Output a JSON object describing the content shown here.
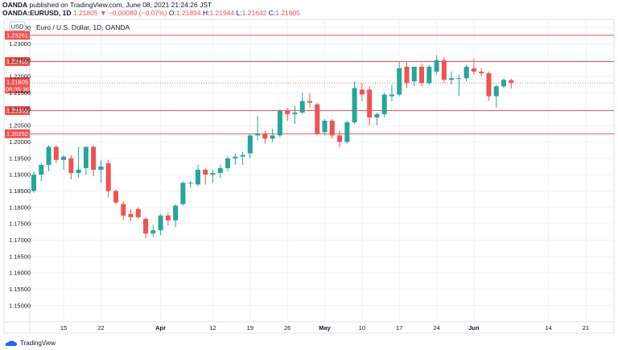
{
  "header": {
    "publisher": "OANDA",
    "published_text": "published on TradingView.com, June 08, 2021 21:24:26 JST",
    "symbol": "OANDA:EURUSD, 1D",
    "change": "1.21805 ▼ −0.00089 (−0.07%)",
    "o_label": "O:",
    "o_value": "1.21894",
    "h_label": "H:",
    "h_value": "1.21944",
    "l_label": "L:",
    "l_value": "1.21642",
    "c_label": "C:",
    "c_value": "1.21805"
  },
  "chart_data": {
    "type": "candlestick",
    "title": "Euro / U.S. Dollar, 1D, OANDA",
    "currency": "USD",
    "ylim": [
      1.145,
      1.2375
    ],
    "y_ticks": [
      "1.23500",
      "1.23000",
      "1.22500",
      "1.22000",
      "1.21500",
      "1.21000",
      "1.20500",
      "1.20000",
      "1.19500",
      "1.19000",
      "1.18500",
      "1.18000",
      "1.17500",
      "1.17000",
      "1.16500",
      "1.16000",
      "1.15500",
      "1.15000"
    ],
    "x_ticks": [
      {
        "label": "15",
        "index": 4,
        "bold": false
      },
      {
        "label": "22",
        "index": 9,
        "bold": false
      },
      {
        "label": "Apr",
        "index": 17,
        "bold": true
      },
      {
        "label": "12",
        "index": 24,
        "bold": false
      },
      {
        "label": "19",
        "index": 29,
        "bold": false
      },
      {
        "label": "26",
        "index": 34,
        "bold": false
      },
      {
        "label": "May",
        "index": 39,
        "bold": true
      },
      {
        "label": "10",
        "index": 44,
        "bold": false
      },
      {
        "label": "17",
        "index": 49,
        "bold": false
      },
      {
        "label": "24",
        "index": 54,
        "bold": false
      },
      {
        "label": "Jun",
        "index": 59,
        "bold": true
      },
      {
        "label": "14",
        "index": 69,
        "bold": false
      },
      {
        "label": "21",
        "index": 74,
        "bold": false
      }
    ],
    "horizontal_levels": [
      {
        "value": 1.23261,
        "label": "1.23261"
      },
      {
        "value": 1.22459,
        "label": "1.22459"
      },
      {
        "value": 1.20959,
        "label": "1.20959"
      },
      {
        "value": 1.20252,
        "label": "1.20252"
      }
    ],
    "last_price": {
      "value": 1.21805,
      "label": "1.21805",
      "countdown": "08:35:36"
    },
    "colors": {
      "up": "#26a69a",
      "down": "#ef5350",
      "level": "#ef5350",
      "grid": "#f0f3fa"
    },
    "candles": [
      {
        "o": 1.185,
        "h": 1.191,
        "l": 1.1845,
        "c": 1.19
      },
      {
        "o": 1.19,
        "h": 1.1935,
        "l": 1.188,
        "c": 1.193
      },
      {
        "o": 1.193,
        "h": 1.199,
        "l": 1.191,
        "c": 1.1985
      },
      {
        "o": 1.1985,
        "h": 1.199,
        "l": 1.1935,
        "c": 1.1945
      },
      {
        "o": 1.1945,
        "h": 1.196,
        "l": 1.1915,
        "c": 1.1955
      },
      {
        "o": 1.195,
        "h": 1.196,
        "l": 1.1885,
        "c": 1.1905
      },
      {
        "o": 1.1905,
        "h": 1.1985,
        "l": 1.189,
        "c": 1.1915
      },
      {
        "o": 1.192,
        "h": 1.1985,
        "l": 1.19,
        "c": 1.1985
      },
      {
        "o": 1.1985,
        "h": 1.199,
        "l": 1.1895,
        "c": 1.1915
      },
      {
        "o": 1.1915,
        "h": 1.1945,
        "l": 1.1875,
        "c": 1.1925
      },
      {
        "o": 1.1935,
        "h": 1.1945,
        "l": 1.183,
        "c": 1.185
      },
      {
        "o": 1.185,
        "h": 1.1855,
        "l": 1.181,
        "c": 1.1815
      },
      {
        "o": 1.181,
        "h": 1.182,
        "l": 1.176,
        "c": 1.1775
      },
      {
        "o": 1.178,
        "h": 1.1795,
        "l": 1.176,
        "c": 1.177
      },
      {
        "o": 1.1795,
        "h": 1.18,
        "l": 1.1765,
        "c": 1.177
      },
      {
        "o": 1.1765,
        "h": 1.177,
        "l": 1.1705,
        "c": 1.172
      },
      {
        "o": 1.172,
        "h": 1.1745,
        "l": 1.171,
        "c": 1.173
      },
      {
        "o": 1.173,
        "h": 1.178,
        "l": 1.1715,
        "c": 1.1775
      },
      {
        "o": 1.1775,
        "h": 1.1785,
        "l": 1.1745,
        "c": 1.176
      },
      {
        "o": 1.176,
        "h": 1.181,
        "l": 1.174,
        "c": 1.1805
      },
      {
        "o": 1.181,
        "h": 1.188,
        "l": 1.1805,
        "c": 1.1875
      },
      {
        "o": 1.1875,
        "h": 1.188,
        "l": 1.186,
        "c": 1.1875
      },
      {
        "o": 1.187,
        "h": 1.193,
        "l": 1.1865,
        "c": 1.1915
      },
      {
        "o": 1.1915,
        "h": 1.192,
        "l": 1.187,
        "c": 1.19
      },
      {
        "o": 1.19,
        "h": 1.1915,
        "l": 1.1875,
        "c": 1.1905
      },
      {
        "o": 1.1905,
        "h": 1.193,
        "l": 1.189,
        "c": 1.192
      },
      {
        "o": 1.192,
        "h": 1.1955,
        "l": 1.191,
        "c": 1.195
      },
      {
        "o": 1.195,
        "h": 1.1965,
        "l": 1.193,
        "c": 1.1955
      },
      {
        "o": 1.1955,
        "h": 1.197,
        "l": 1.193,
        "c": 1.196
      },
      {
        "o": 1.1965,
        "h": 1.2025,
        "l": 1.195,
        "c": 1.202
      },
      {
        "o": 1.202,
        "h": 1.208,
        "l": 1.2005,
        "c": 1.2025
      },
      {
        "o": 1.2025,
        "h": 1.2035,
        "l": 1.1995,
        "c": 1.201
      },
      {
        "o": 1.201,
        "h": 1.204,
        "l": 1.2,
        "c": 1.202
      },
      {
        "o": 1.202,
        "h": 1.21,
        "l": 1.2015,
        "c": 1.2095
      },
      {
        "o": 1.2095,
        "h": 1.2105,
        "l": 1.2065,
        "c": 1.2085
      },
      {
        "o": 1.2085,
        "h": 1.211,
        "l": 1.2055,
        "c": 1.209
      },
      {
        "o": 1.209,
        "h": 1.215,
        "l": 1.2085,
        "c": 1.2125
      },
      {
        "o": 1.2125,
        "h": 1.215,
        "l": 1.2105,
        "c": 1.212
      },
      {
        "o": 1.2115,
        "h": 1.212,
        "l": 1.202,
        "c": 1.2025
      },
      {
        "o": 1.203,
        "h": 1.207,
        "l": 1.202,
        "c": 1.2065
      },
      {
        "o": 1.2065,
        "h": 1.207,
        "l": 1.201,
        "c": 1.202
      },
      {
        "o": 1.202,
        "h": 1.2035,
        "l": 1.1985,
        "c": 1.2
      },
      {
        "o": 1.2,
        "h": 1.2065,
        "l": 1.1995,
        "c": 1.206
      },
      {
        "o": 1.206,
        "h": 1.2185,
        "l": 1.2055,
        "c": 1.2165
      },
      {
        "o": 1.216,
        "h": 1.218,
        "l": 1.2125,
        "c": 1.2145
      },
      {
        "o": 1.216,
        "h": 1.217,
        "l": 1.205,
        "c": 1.2075
      },
      {
        "o": 1.2075,
        "h": 1.209,
        "l": 1.205,
        "c": 1.2085
      },
      {
        "o": 1.2085,
        "h": 1.215,
        "l": 1.2075,
        "c": 1.2145
      },
      {
        "o": 1.214,
        "h": 1.2175,
        "l": 1.2125,
        "c": 1.2145
      },
      {
        "o": 1.2145,
        "h": 1.2245,
        "l": 1.214,
        "c": 1.2225
      },
      {
        "o": 1.223,
        "h": 1.2245,
        "l": 1.2165,
        "c": 1.218
      },
      {
        "o": 1.2185,
        "h": 1.223,
        "l": 1.217,
        "c": 1.223
      },
      {
        "o": 1.223,
        "h": 1.224,
        "l": 1.217,
        "c": 1.218
      },
      {
        "o": 1.218,
        "h": 1.2235,
        "l": 1.2175,
        "c": 1.223
      },
      {
        "o": 1.2215,
        "h": 1.2265,
        "l": 1.2205,
        "c": 1.225
      },
      {
        "o": 1.225,
        "h": 1.226,
        "l": 1.218,
        "c": 1.219
      },
      {
        "o": 1.219,
        "h": 1.2215,
        "l": 1.2175,
        "c": 1.2195
      },
      {
        "o": 1.2195,
        "h": 1.2205,
        "l": 1.214,
        "c": 1.2195
      },
      {
        "o": 1.2195,
        "h": 1.2235,
        "l": 1.2185,
        "c": 1.223
      },
      {
        "o": 1.2225,
        "h": 1.2255,
        "l": 1.2205,
        "c": 1.2215
      },
      {
        "o": 1.2215,
        "h": 1.2225,
        "l": 1.22,
        "c": 1.221
      },
      {
        "o": 1.221,
        "h": 1.2215,
        "l": 1.2125,
        "c": 1.214
      },
      {
        "o": 1.214,
        "h": 1.2175,
        "l": 1.2105,
        "c": 1.217
      },
      {
        "o": 1.217,
        "h": 1.2195,
        "l": 1.2165,
        "c": 1.219
      },
      {
        "o": 1.2189,
        "h": 1.2194,
        "l": 1.2164,
        "c": 1.2181
      }
    ]
  },
  "footer": {
    "brand": "TradingView"
  }
}
